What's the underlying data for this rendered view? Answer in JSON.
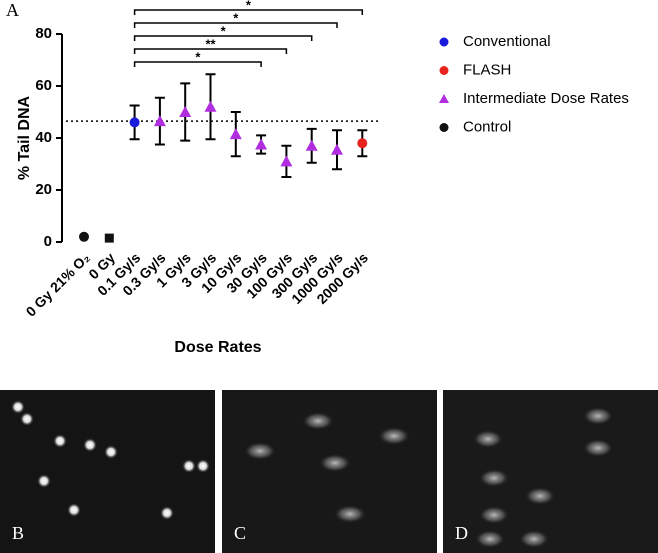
{
  "chart_data": {
    "type": "errorbar",
    "panel_label": "A",
    "y_label": "% Tail DNA",
    "x_label": "Dose Rates",
    "categories": [
      "0 Gy 21% O₂",
      "0 Gy",
      "0.1 Gy/s",
      "0.3 Gy/s",
      "1 Gy/s",
      "3 Gy/s",
      "10 Gy/s",
      "30 Gy/s",
      "100 Gy/s",
      "300 Gy/s",
      "1000 Gy/s",
      "2000 Gy/s"
    ],
    "ylim": [
      0,
      85
    ],
    "yticks": [
      0,
      20,
      40,
      60,
      80
    ],
    "reference_line": 46.5,
    "series": [
      {
        "name": "Conventional",
        "color": "#1a1adb",
        "marker": "circle",
        "values": [
          null,
          null,
          46,
          null,
          null,
          null,
          null,
          null,
          null,
          null,
          null,
          null
        ],
        "errors": [
          null,
          null,
          6.5,
          null,
          null,
          null,
          null,
          null,
          null,
          null,
          null,
          null
        ]
      },
      {
        "name": "FLASH",
        "color": "#e8231e",
        "marker": "circle",
        "values": [
          null,
          null,
          null,
          null,
          null,
          null,
          null,
          null,
          null,
          null,
          null,
          38
        ],
        "errors": [
          null,
          null,
          null,
          null,
          null,
          null,
          null,
          null,
          null,
          null,
          null,
          5
        ]
      },
      {
        "name": "Intermediate Dose Rates",
        "color": "#b12ee0",
        "marker": "triangle",
        "values": [
          null,
          null,
          null,
          46.5,
          50,
          52,
          41.5,
          37.5,
          31,
          37,
          35.5,
          null
        ],
        "errors": [
          null,
          null,
          null,
          9,
          11,
          12.5,
          8.5,
          3.5,
          6,
          6.5,
          7.5,
          null
        ]
      },
      {
        "name": "Control",
        "color": "#111111",
        "marker": "circle",
        "values": [
          2,
          1.5,
          null,
          null,
          null,
          null,
          null,
          null,
          null,
          null,
          null,
          null
        ],
        "errors": [
          null,
          null,
          null,
          null,
          null,
          null,
          null,
          null,
          null,
          null,
          null,
          null
        ]
      }
    ],
    "brackets": [
      {
        "from": "0.1 Gy/s",
        "to": "30 Gy/s",
        "label": "*"
      },
      {
        "from": "0.1 Gy/s",
        "to": "100 Gy/s",
        "label": "**"
      },
      {
        "from": "0.1 Gy/s",
        "to": "300 Gy/s",
        "label": "*"
      },
      {
        "from": "0.1 Gy/s",
        "to": "1000 Gy/s",
        "label": "*"
      },
      {
        "from": "0.1 Gy/s",
        "to": "2000 Gy/s",
        "label": "*"
      }
    ]
  },
  "images": [
    {
      "label": "B"
    },
    {
      "label": "C"
    },
    {
      "label": "D"
    }
  ]
}
